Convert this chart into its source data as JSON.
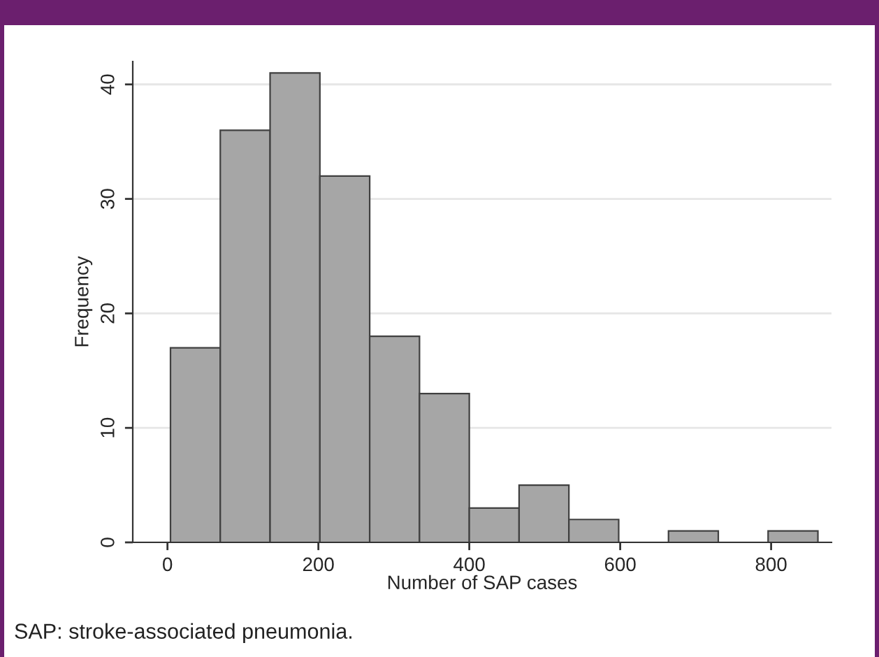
{
  "chart_data": {
    "type": "histogram",
    "xlabel": "Number of SAP cases",
    "ylabel": "Frequency",
    "bins": [
      4,
      70,
      136,
      202,
      268,
      334,
      400,
      466,
      532,
      598,
      664,
      730,
      796,
      862
    ],
    "values": [
      17,
      36,
      41,
      32,
      18,
      13,
      3,
      5,
      2,
      0,
      1,
      0,
      1
    ],
    "color": "#a6a6a6",
    "xlim": [
      -46,
      880
    ],
    "xticks": [
      0,
      200,
      400,
      600,
      800
    ],
    "ylim": [
      0,
      42
    ],
    "yticks": [
      0,
      10,
      20,
      30,
      40
    ],
    "grid": "y",
    "annotations": [
      "SAP: stroke-associated pneumonia."
    ]
  }
}
